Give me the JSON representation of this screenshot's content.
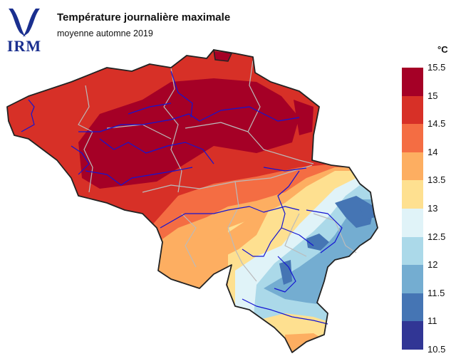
{
  "header": {
    "logo_text": "IRM",
    "title": "Température journalière maximale",
    "subtitle": "moyenne automne 2019"
  },
  "legend": {
    "unit": "°C",
    "labels": [
      "15.5",
      "15",
      "14.5",
      "14",
      "13.5",
      "13",
      "12.5",
      "12",
      "11.5",
      "11",
      "10.5"
    ],
    "colors": [
      "#a50026",
      "#d73027",
      "#f46d43",
      "#fdae61",
      "#fee090",
      "#e0f3f8",
      "#abd9e9",
      "#74add1",
      "#4575b4",
      "#313695"
    ]
  },
  "colors": {
    "logo": "#1a2f8f",
    "border": "#222222",
    "rivers": "#1414d2",
    "provinces": "#bbbbbb"
  }
}
